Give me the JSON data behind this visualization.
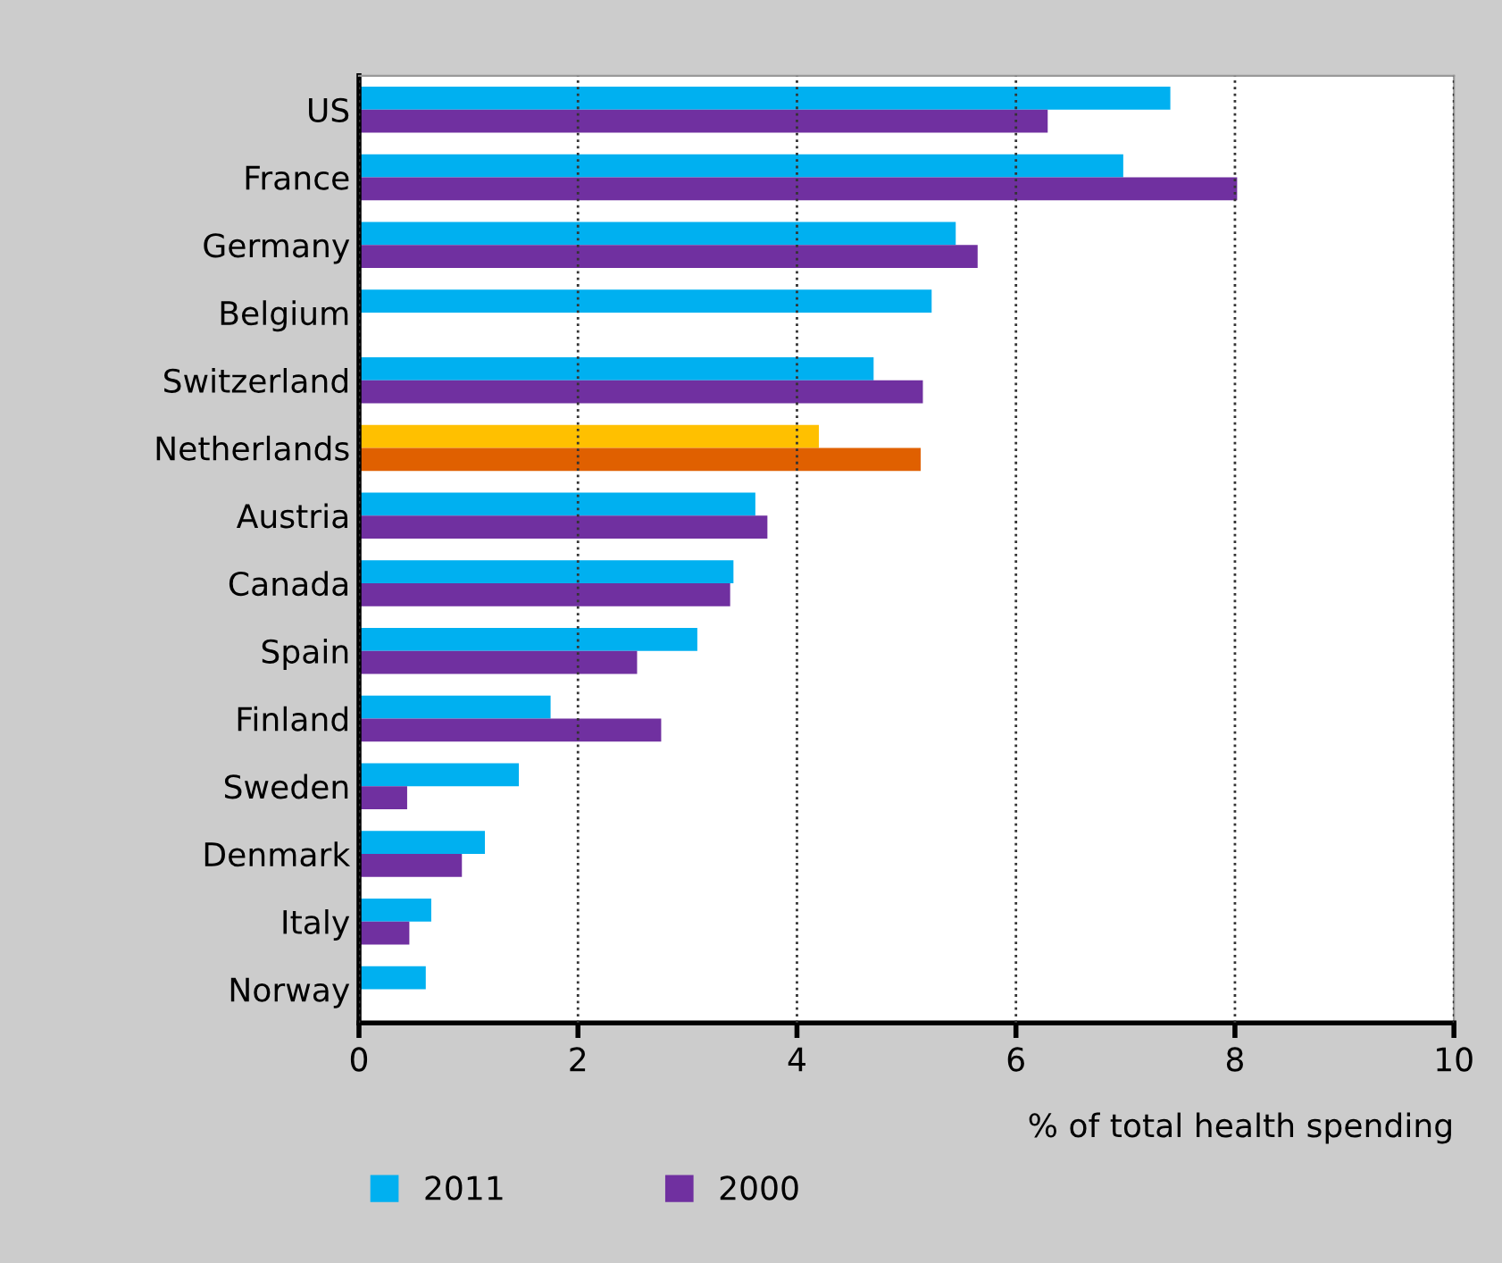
{
  "chart_data": {
    "type": "bar",
    "orientation": "horizontal",
    "xlabel": "% of total health spending",
    "categories": [
      "US",
      "France",
      "Germany",
      "Belgium",
      "Switzerland",
      "Netherlands",
      "Austria",
      "Canada",
      "Spain",
      "Finland",
      "Sweden",
      "Denmark",
      "Italy",
      "Norway"
    ],
    "series": [
      {
        "name": "2011",
        "color": "#00b0f0",
        "colors": [
          "#00b0f0",
          "#00b0f0",
          "#00b0f0",
          "#00b0f0",
          "#00b0f0",
          "#ffc000",
          "#00b0f0",
          "#00b0f0",
          "#00b0f0",
          "#00b0f0",
          "#00b0f0",
          "#00b0f0",
          "#00b0f0",
          "#00b0f0"
        ],
        "values": [
          7.41,
          6.98,
          5.45,
          5.23,
          4.7,
          4.2,
          3.62,
          3.42,
          3.09,
          1.75,
          1.46,
          1.15,
          0.66,
          0.61
        ]
      },
      {
        "name": "2000",
        "color": "#7030a0",
        "colors": [
          "#7030a0",
          "#7030a0",
          "#7030a0",
          "#7030a0",
          "#7030a0",
          "#e06000",
          "#7030a0",
          "#7030a0",
          "#7030a0",
          "#7030a0",
          "#7030a0",
          "#7030a0",
          "#7030a0",
          "#7030a0"
        ],
        "values": [
          6.29,
          8.02,
          5.65,
          null,
          5.15,
          5.13,
          3.73,
          3.39,
          2.54,
          2.76,
          0.44,
          0.94,
          0.46,
          null
        ]
      }
    ],
    "xlim": [
      0,
      10
    ],
    "xticks": [
      0,
      2,
      4,
      6,
      8,
      10
    ],
    "grid": "x",
    "legend": "bottom left",
    "line_style": "dotted"
  }
}
